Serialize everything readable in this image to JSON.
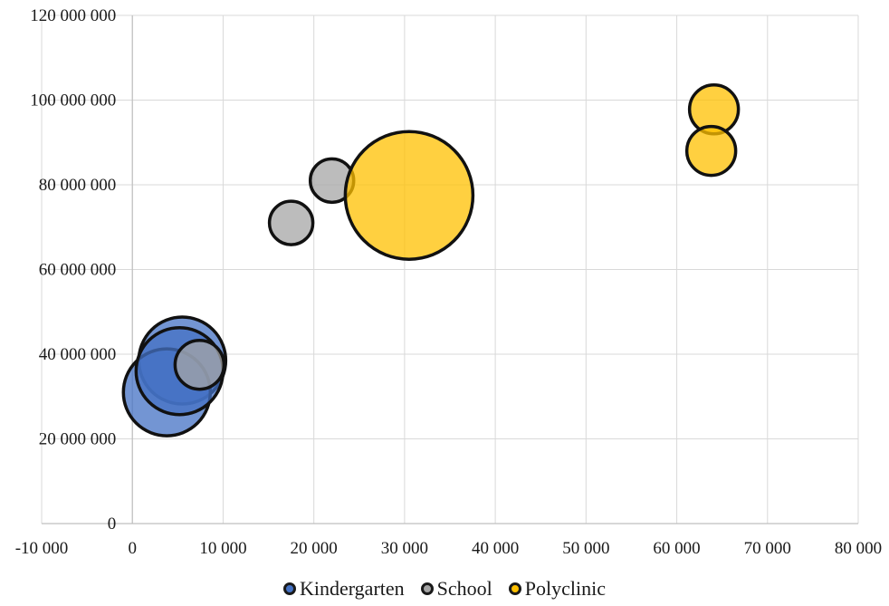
{
  "chart_data": {
    "type": "scatter",
    "subtype": "bubble",
    "xlim": [
      -10000,
      80000
    ],
    "ylim": [
      0,
      120000000
    ],
    "x_ticks": [
      -10000,
      0,
      10000,
      20000,
      30000,
      40000,
      50000,
      60000,
      70000,
      80000
    ],
    "x_tick_labels": [
      "-10 000",
      "0",
      "10 000",
      "20 000",
      "30 000",
      "40 000",
      "50 000",
      "60 000",
      "70 000",
      "80 000"
    ],
    "y_ticks": [
      0,
      20000000,
      40000000,
      60000000,
      80000000,
      100000000,
      120000000
    ],
    "y_tick_labels": [
      "0",
      "20 000 000",
      "40 000 000",
      "60 000 000",
      "80 000 000",
      "100 000 000",
      "120 000 000"
    ],
    "grid": true,
    "legend_position": "bottom",
    "series": [
      {
        "name": "Kindergarten",
        "color": "#4472C4",
        "points": [
          {
            "x": 5500,
            "y": 38500000,
            "size": 0.32
          },
          {
            "x": 3800,
            "y": 31000000,
            "size": 0.32
          },
          {
            "x": 5200,
            "y": 36000000,
            "size": 0.32
          }
        ]
      },
      {
        "name": "School",
        "color": "#A5A5A5",
        "points": [
          {
            "x": 17500,
            "y": 71000000,
            "size": 0.16
          },
          {
            "x": 22000,
            "y": 81000000,
            "size": 0.16
          },
          {
            "x": 7400,
            "y": 37500000,
            "size": 0.18
          }
        ]
      },
      {
        "name": "Polyclinic",
        "color": "#FFC000",
        "points": [
          {
            "x": 30500,
            "y": 77500000,
            "size": 0.47
          },
          {
            "x": 64100,
            "y": 97800000,
            "size": 0.18
          },
          {
            "x": 63800,
            "y": 88000000,
            "size": 0.18
          }
        ]
      }
    ]
  }
}
